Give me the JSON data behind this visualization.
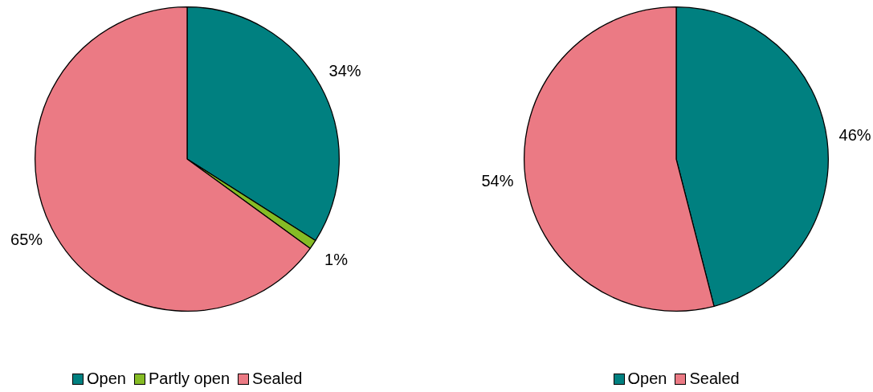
{
  "chart_data": [
    {
      "type": "pie",
      "categories": [
        "Open",
        "Partly open",
        "Sealed"
      ],
      "values": [
        34,
        1,
        65
      ],
      "colors": [
        "#008080",
        "#86bc25",
        "#eb7a84"
      ],
      "value_labels": [
        "34%",
        "1%",
        "65%"
      ],
      "legend": "bottom"
    },
    {
      "type": "pie",
      "categories": [
        "Open",
        "Sealed"
      ],
      "values": [
        46,
        54
      ],
      "colors": [
        "#008080",
        "#eb7a84"
      ],
      "value_labels": [
        "46%",
        "54%"
      ],
      "legend": "bottom"
    }
  ]
}
